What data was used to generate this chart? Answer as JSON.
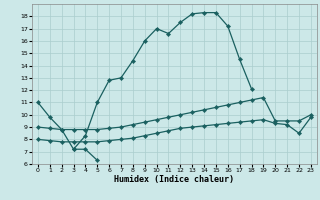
{
  "xlabel": "Humidex (Indice chaleur)",
  "background_color": "#cce8e8",
  "grid_color": "#aacece",
  "line_color": "#1a6060",
  "xlim": [
    -0.5,
    23.5
  ],
  "ylim": [
    6,
    19
  ],
  "xticks": [
    0,
    1,
    2,
    3,
    4,
    5,
    6,
    7,
    8,
    9,
    10,
    11,
    12,
    13,
    14,
    15,
    16,
    17,
    18,
    19,
    20,
    21,
    22,
    23
  ],
  "yticks": [
    6,
    7,
    8,
    9,
    10,
    11,
    12,
    13,
    14,
    15,
    16,
    17,
    18
  ],
  "series": [
    {
      "x": [
        0,
        1,
        2,
        3,
        4,
        5
      ],
      "y": [
        11,
        9.8,
        8.8,
        7.2,
        7.2,
        6.3
      ]
    },
    {
      "x": [
        3,
        4,
        5,
        6,
        7,
        8,
        9,
        10,
        11,
        12,
        13,
        14,
        15,
        16,
        17,
        18
      ],
      "y": [
        7.2,
        8.3,
        11.0,
        12.8,
        13.0,
        14.4,
        16.0,
        17.0,
        16.6,
        17.5,
        18.2,
        18.3,
        18.3,
        17.2,
        14.5,
        12.1
      ]
    },
    {
      "x": [
        0,
        1,
        2,
        3,
        4,
        5,
        6,
        7,
        8,
        9,
        10,
        11,
        12,
        13,
        14,
        15,
        16,
        17,
        18,
        19,
        20,
        21,
        22,
        23
      ],
      "y": [
        9.0,
        8.9,
        8.8,
        8.8,
        8.8,
        8.8,
        8.9,
        9.0,
        9.2,
        9.4,
        9.6,
        9.8,
        10.0,
        10.2,
        10.4,
        10.6,
        10.8,
        11.0,
        11.2,
        11.4,
        9.5,
        9.5,
        9.5,
        10.0
      ]
    },
    {
      "x": [
        0,
        1,
        2,
        3,
        4,
        5,
        6,
        7,
        8,
        9,
        10,
        11,
        12,
        13,
        14,
        15,
        16,
        17,
        18,
        19,
        20,
        21,
        22,
        23
      ],
      "y": [
        8.0,
        7.9,
        7.8,
        7.8,
        7.8,
        7.8,
        7.9,
        8.0,
        8.1,
        8.3,
        8.5,
        8.7,
        8.9,
        9.0,
        9.1,
        9.2,
        9.3,
        9.4,
        9.5,
        9.6,
        9.3,
        9.2,
        8.5,
        9.8
      ]
    }
  ]
}
